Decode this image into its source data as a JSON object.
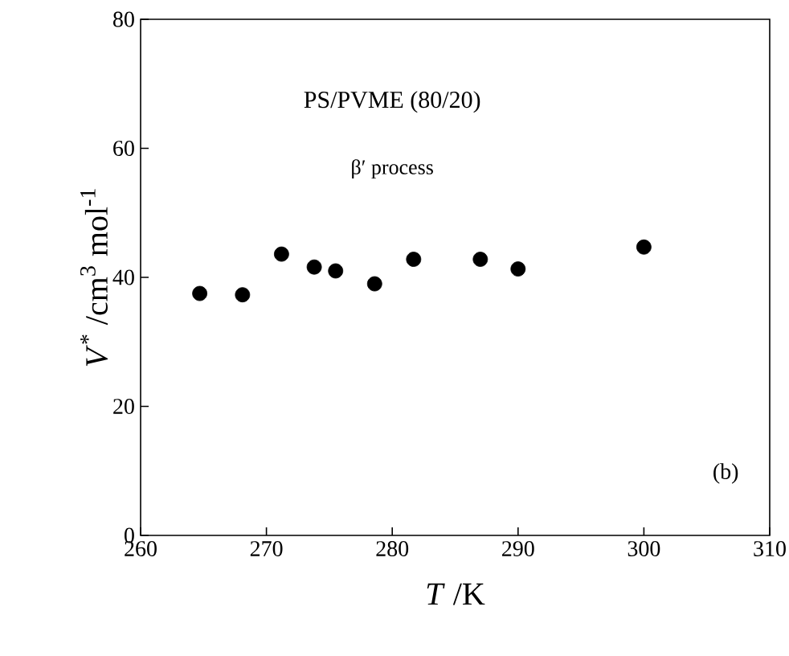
{
  "chart_data": {
    "type": "scatter",
    "x": [
      264.7,
      268.1,
      271.2,
      273.8,
      275.5,
      278.6,
      281.7,
      287.0,
      290.0,
      300.0
    ],
    "values": [
      37.5,
      37.3,
      43.6,
      41.6,
      41.0,
      39.0,
      42.8,
      42.8,
      41.3,
      44.7
    ],
    "color": "#000000",
    "marker": "circle",
    "xlabel": "*T* /K",
    "ylabel": "*V*$^{*}$ /cm$^{3}$ mol$^{-1}$",
    "annotations": [
      "PS/PVME (80/20)",
      "β′ process",
      "(b)"
    ],
    "xlim": [
      260,
      310
    ],
    "ylim": [
      0,
      80
    ],
    "xticks": [
      260,
      270,
      280,
      290,
      300,
      310
    ],
    "yticks": [
      0,
      20,
      40,
      60,
      80
    ]
  }
}
